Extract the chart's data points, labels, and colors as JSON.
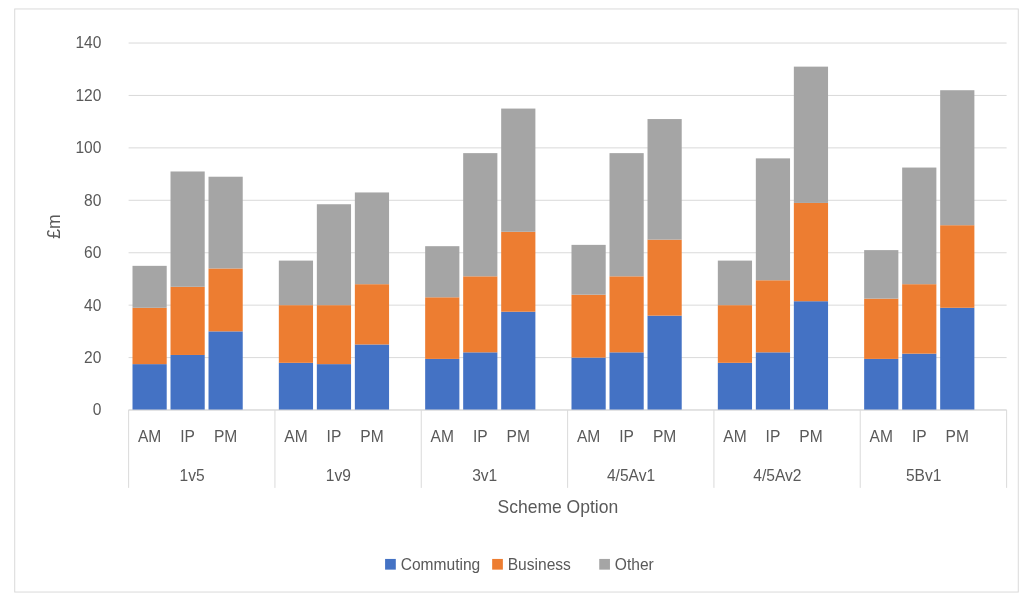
{
  "chart_data": {
    "type": "bar",
    "stacked": true,
    "xlabel": "Scheme Option",
    "ylabel": "£m",
    "categories": [
      "AM",
      "IP",
      "PM",
      "AM",
      "IP",
      "PM",
      "AM",
      "IP",
      "PM",
      "AM",
      "IP",
      "PM",
      "AM",
      "IP",
      "PM",
      "AM",
      "IP",
      "PM"
    ],
    "annotations": [
      "1v5",
      "1v9",
      "3v1",
      "4/5Av1",
      "4/5Av2",
      "5Bv1"
    ],
    "series": [
      {
        "name": "Commuting",
        "color": "#4472c4",
        "values": [
          17.5,
          21,
          30,
          18,
          17.5,
          25,
          19.5,
          22,
          37.5,
          20,
          22,
          36,
          18,
          22,
          41.5,
          19.5,
          21.5,
          39
        ]
      },
      {
        "name": "Business",
        "color": "#ed7d31",
        "values": [
          21.5,
          26,
          24,
          22,
          22.5,
          23,
          23.5,
          29,
          30.5,
          24,
          29,
          29,
          22,
          27.5,
          37.5,
          23,
          26.5,
          31.5
        ]
      },
      {
        "name": "Other",
        "color": "#a5a5a5",
        "values": [
          16,
          44,
          35,
          17,
          38.5,
          35,
          19.5,
          47,
          47,
          19,
          47,
          46,
          17,
          46.5,
          52,
          18.5,
          44.5,
          51.5
        ]
      }
    ],
    "ylim": [
      0,
      140
    ],
    "yticks": [
      0,
      20,
      40,
      60,
      80,
      100,
      120,
      140
    ],
    "grid": "y",
    "legend": "bottom"
  }
}
